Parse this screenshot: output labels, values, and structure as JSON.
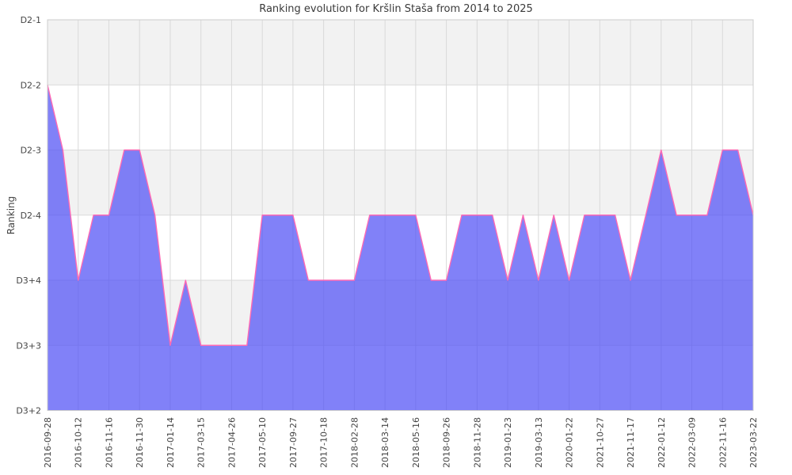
{
  "title": "Ranking evolution for Kršlin Staša from 2014 to 2025",
  "y_axis_label": "Ranking",
  "colors": {
    "area_fill": "rgba(80,80,245,0.72)",
    "line": "#ff69b4",
    "band_gray": "#f2f2f2",
    "band_white": "#ffffff",
    "gridline": "#d9d9d9",
    "border": "#cccccc",
    "tick_text": "#444444",
    "title_text": "#3a3a3a"
  },
  "chart_data": {
    "type": "area",
    "title": "Ranking evolution for Kršlin Staša from 2014 to 2025",
    "xlabel": "",
    "ylabel": "Ranking",
    "y_tick_labels_top_to_bottom": [
      "D2-1",
      "D2-2",
      "D2-3",
      "D2-4",
      "D3+4",
      "D3+3",
      "D3+2"
    ],
    "y_levels_bottom_to_top": [
      "D3+2",
      "D3+3",
      "D3+4",
      "D2-4",
      "D2-3",
      "D2-2",
      "D2-1"
    ],
    "ylim_note": "y axis is categorical ranking levels; area fills down to D3+2 baseline",
    "x_tick_labels": [
      "2016-09-28",
      "2016-10-12",
      "2016-11-16",
      "2016-11-30",
      "2017-01-14",
      "2017-03-15",
      "2017-04-26",
      "2017-05-10",
      "2017-09-27",
      "2017-10-18",
      "2018-02-28",
      "2018-03-14",
      "2018-05-16",
      "2018-09-26",
      "2018-11-28",
      "2019-01-23",
      "2019-03-13",
      "2020-01-22",
      "2021-10-27",
      "2021-11-17",
      "2022-01-12",
      "2022-03-09",
      "2022-11-16",
      "2023-03-22"
    ],
    "x_labels_every_n_points": 2,
    "series_ranks": [
      "D2-2",
      "D2-3",
      "D3+4",
      "D2-4",
      "D2-4",
      "D2-3",
      "D2-3",
      "D2-4",
      "D3+3",
      "D3+4",
      "D3+3",
      "D3+3",
      "D3+3",
      "D3+3",
      "D2-4",
      "D2-4",
      "D2-4",
      "D3+4",
      "D3+4",
      "D3+4",
      "D3+4",
      "D2-4",
      "D2-4",
      "D2-4",
      "D2-4",
      "D3+4",
      "D3+4",
      "D2-4",
      "D2-4",
      "D2-4",
      "D3+4",
      "D2-4",
      "D3+4",
      "D2-4",
      "D3+4",
      "D2-4",
      "D2-4",
      "D2-4",
      "D3+4",
      "D2-4",
      "D2-3",
      "D2-4",
      "D2-4",
      "D2-4",
      "D2-3",
      "D2-3",
      "D2-4"
    ],
    "series_values": [
      5,
      4,
      2,
      3,
      3,
      4,
      4,
      3,
      1,
      2,
      1,
      1,
      1,
      1,
      3,
      3,
      3,
      2,
      2,
      2,
      2,
      3,
      3,
      3,
      3,
      2,
      2,
      3,
      3,
      3,
      2,
      3,
      2,
      3,
      2,
      3,
      3,
      3,
      2,
      3,
      4,
      3,
      3,
      3,
      4,
      4,
      3
    ],
    "grid": true,
    "legend": false
  }
}
